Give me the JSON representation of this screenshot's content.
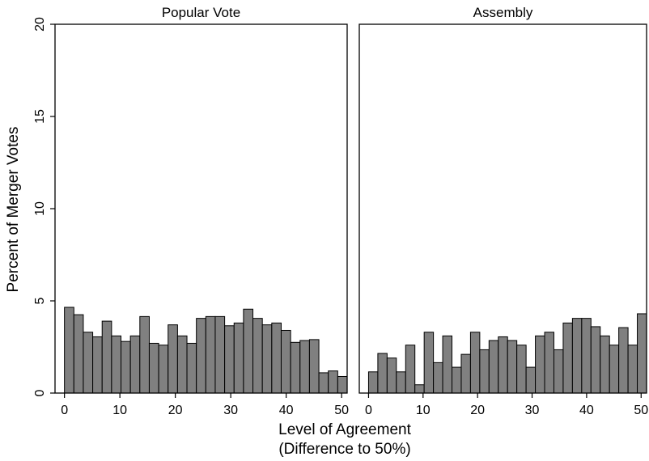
{
  "chart_data": {
    "type": "bar",
    "ylabel": "Percent of Merger Votes",
    "xlabel_lines": [
      "Level of Agreement",
      "(Difference to 50%)"
    ],
    "ylim": [
      0,
      20
    ],
    "yticks": [
      0,
      5,
      10,
      15,
      20
    ],
    "xlim": [
      -1.7,
      51
    ],
    "xticks": [
      0,
      10,
      20,
      30,
      40,
      50
    ],
    "bin_width": 1.7,
    "bar_color": "#808080",
    "panels": [
      {
        "title": "Popular Vote",
        "bin_starts": [
          0,
          1.7,
          3.4,
          5.1,
          6.8,
          8.5,
          10.2,
          11.9,
          13.6,
          15.3,
          17,
          18.7,
          20.4,
          22.1,
          23.8,
          25.5,
          27.2,
          28.9,
          30.6,
          32.3,
          34,
          35.7,
          37.4,
          39.1,
          40.8,
          42.5,
          44.2,
          45.9,
          47.6,
          49.3
        ],
        "values": [
          4.65,
          4.25,
          3.3,
          3.05,
          3.9,
          3.1,
          2.8,
          3.1,
          4.15,
          2.7,
          2.6,
          3.7,
          3.1,
          2.7,
          4.05,
          4.15,
          4.15,
          3.65,
          3.8,
          4.55,
          4.05,
          3.7,
          3.8,
          3.4,
          2.75,
          2.85,
          2.9,
          1.1,
          1.2,
          0.9
        ]
      },
      {
        "title": "Assembly",
        "bin_starts": [
          0,
          1.7,
          3.4,
          5.1,
          6.8,
          8.5,
          10.2,
          11.9,
          13.6,
          15.3,
          17,
          18.7,
          20.4,
          22.1,
          23.8,
          25.5,
          27.2,
          28.9,
          30.6,
          32.3,
          34,
          35.7,
          37.4,
          39.1,
          40.8,
          42.5,
          44.2,
          45.9,
          47.6,
          49.3
        ],
        "values": [
          1.15,
          2.15,
          1.9,
          1.15,
          2.6,
          0.45,
          3.3,
          1.65,
          3.1,
          1.4,
          2.1,
          3.3,
          2.35,
          2.85,
          3.05,
          2.85,
          2.6,
          1.4,
          3.1,
          3.3,
          2.35,
          3.8,
          4.05,
          4.05,
          3.6,
          3.1,
          2.6,
          3.55,
          2.6,
          4.3
        ]
      }
    ]
  }
}
